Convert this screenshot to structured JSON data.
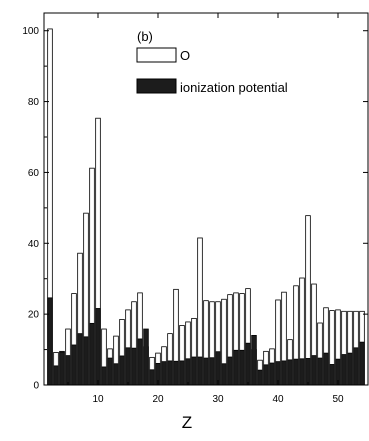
{
  "chart_data": {
    "type": "bar",
    "panel_label": "(b)",
    "xlabel": "Z",
    "ylabel": "",
    "xlim": [
      1,
      55
    ],
    "ylim": [
      0,
      105
    ],
    "xticks": [
      10,
      20,
      30,
      40,
      50
    ],
    "yticks": [
      0,
      20,
      40,
      60,
      80,
      100
    ],
    "grid": false,
    "legend_position": "top-center",
    "bar_mode": "overlaid",
    "x": [
      2,
      3,
      4,
      5,
      6,
      7,
      8,
      9,
      10,
      11,
      12,
      13,
      14,
      15,
      16,
      17,
      18,
      19,
      20,
      21,
      22,
      23,
      24,
      25,
      26,
      27,
      28,
      29,
      30,
      31,
      32,
      33,
      34,
      35,
      36,
      37,
      38,
      39,
      40,
      41,
      42,
      43,
      44,
      45,
      46,
      47,
      48,
      49,
      50,
      51,
      52,
      53,
      54
    ],
    "series": [
      {
        "name": "O",
        "color": "#ffffff",
        "values": [
          100.5,
          9.2,
          9.5,
          15.8,
          25.8,
          37.2,
          48.5,
          61.2,
          75.3,
          15.8,
          10.2,
          13.8,
          18.5,
          21.2,
          23.5,
          26.0,
          10.8,
          7.8,
          9.0,
          10.8,
          14.5,
          27.0,
          16.8,
          17.8,
          18.8,
          41.5,
          23.8,
          23.5,
          23.5,
          24.2,
          25.5,
          26.0,
          25.8,
          27.2,
          10.0,
          7.0,
          9.5,
          10.2,
          24.0,
          26.2,
          12.8,
          28.0,
          30.2,
          47.8,
          28.5,
          17.5,
          21.8,
          21.0,
          21.2,
          20.8,
          20.8,
          20.8,
          20.8
        ]
      },
      {
        "name": "ionization potential",
        "color": "#1c1c1c",
        "values": [
          24.6,
          5.4,
          9.3,
          8.3,
          11.3,
          14.5,
          13.6,
          17.4,
          21.6,
          5.1,
          7.6,
          6.0,
          8.2,
          10.5,
          10.4,
          13.0,
          15.8,
          4.3,
          6.1,
          6.6,
          6.8,
          6.7,
          6.8,
          7.4,
          7.9,
          7.9,
          7.6,
          7.7,
          9.4,
          6.0,
          7.9,
          9.8,
          9.8,
          11.8,
          14.0,
          4.2,
          5.7,
          6.2,
          6.6,
          6.8,
          7.1,
          7.3,
          7.4,
          7.5,
          8.3,
          7.6,
          9.0,
          5.8,
          7.3,
          8.6,
          9.0,
          10.5,
          12.1
        ]
      }
    ]
  }
}
